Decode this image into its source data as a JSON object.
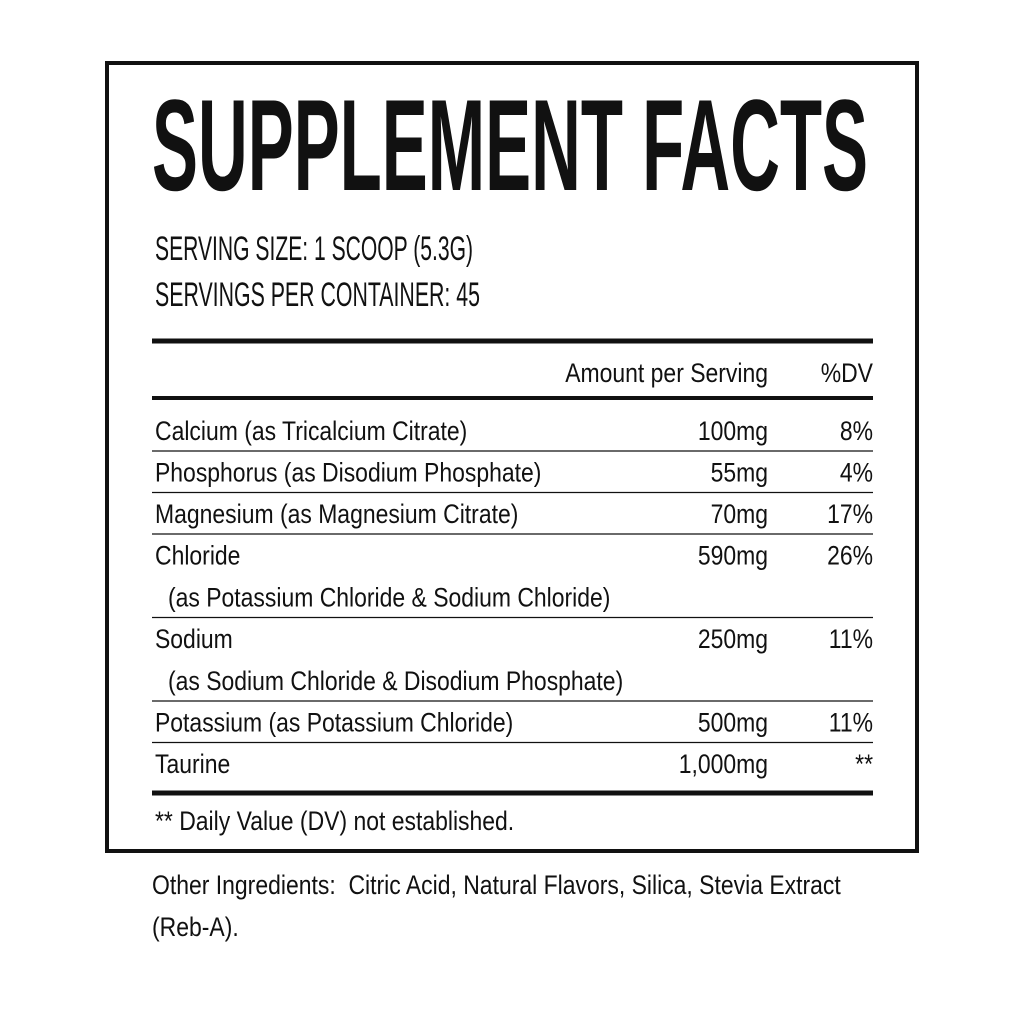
{
  "label": {
    "title": "SUPPLEMENT FACTS",
    "serving_size": "SERVING SIZE: 1 SCOOP (5.3G)",
    "servings_per_container": "SERVINGS PER CONTAINER: 45",
    "header": {
      "amount": "Amount per Serving",
      "dv": "%DV"
    },
    "rows": [
      {
        "name": "Calcium (as Tricalcium Citrate)",
        "amount": "100mg",
        "dv": "8%"
      },
      {
        "name": "Phosphorus (as Disodium Phosphate)",
        "amount": "55mg",
        "dv": "4%"
      },
      {
        "name": "Magnesium (as Magnesium Citrate)",
        "amount": "70mg",
        "dv": "17%"
      },
      {
        "name": "Chloride",
        "detail": "(as Potassium Chloride & Sodium Chloride)",
        "amount": "590mg",
        "dv": "26%"
      },
      {
        "name": "Sodium",
        "detail": "(as Sodium Chloride & Disodium Phosphate)",
        "amount": "250mg",
        "dv": "11%"
      },
      {
        "name": "Potassium (as Potassium Chloride)",
        "amount": "500mg",
        "dv": "11%"
      },
      {
        "name": "Taurine",
        "amount": "1,000mg",
        "dv": "**"
      }
    ],
    "footnote": "** Daily Value (DV) not established.",
    "other_ingredients": "Other Ingredients:  Citric Acid, Natural Flavors, Silica, Stevia Extract (Reb-A)."
  }
}
